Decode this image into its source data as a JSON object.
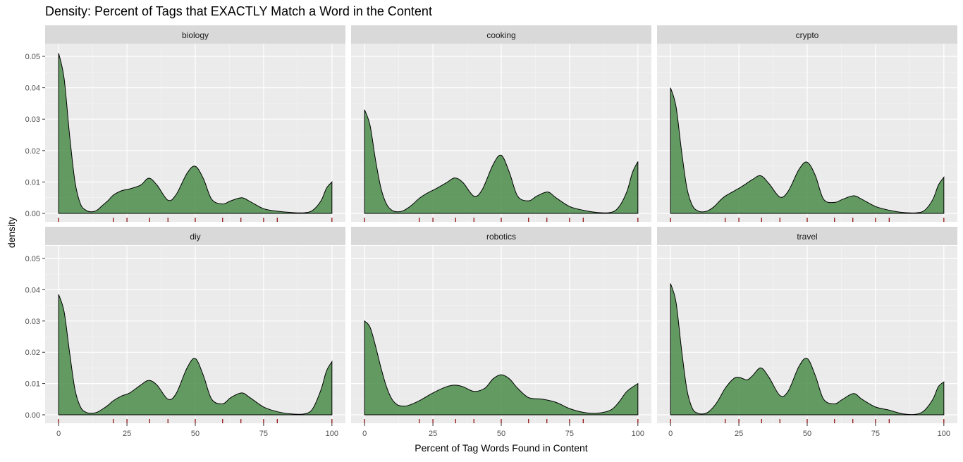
{
  "chart_data": {
    "type": "area",
    "title": "Density: Percent of Tags that EXACTLY Match a Word in the Content",
    "xlabel": "Percent of Tag Words Found in Content",
    "ylabel": "density",
    "xlim": [
      0,
      100
    ],
    "ylim": [
      0,
      0.055
    ],
    "x_ticks": [
      0,
      25,
      50,
      75,
      100
    ],
    "y_ticks": [
      0.0,
      0.01,
      0.02,
      0.03,
      0.04,
      0.05
    ],
    "y_tick_labels": [
      "0.00",
      "0.01",
      "0.02",
      "0.03",
      "0.04",
      "0.05"
    ],
    "grid": true,
    "fill_color": "#4a8c4a",
    "rug_color": "#8b0000",
    "rug_x": [
      0,
      20,
      25,
      33.3,
      40,
      50,
      60,
      66.7,
      75,
      80,
      100
    ],
    "panels": [
      {
        "name": "biology",
        "x": [
          0,
          2,
          4,
          6,
          8,
          10,
          12,
          14,
          16,
          18,
          20,
          23,
          26,
          30,
          33,
          36,
          40,
          43,
          47,
          50,
          53,
          56,
          60,
          63,
          67,
          70,
          75,
          80,
          85,
          90,
          93,
          96,
          98,
          100
        ],
        "y": [
          0.051,
          0.043,
          0.025,
          0.01,
          0.003,
          0.001,
          0.0005,
          0.001,
          0.0025,
          0.004,
          0.0058,
          0.0072,
          0.0078,
          0.009,
          0.0112,
          0.009,
          0.0042,
          0.006,
          0.0128,
          0.015,
          0.011,
          0.0045,
          0.003,
          0.004,
          0.005,
          0.0038,
          0.0015,
          0.0007,
          0.0003,
          0.0002,
          0.001,
          0.004,
          0.008,
          0.01
        ]
      },
      {
        "name": "cooking",
        "x": [
          0,
          2,
          4,
          6,
          8,
          10,
          12,
          14,
          16,
          18,
          20,
          23,
          26,
          30,
          33,
          36,
          40,
          43,
          47,
          50,
          53,
          56,
          60,
          63,
          67,
          70,
          75,
          80,
          85,
          90,
          93,
          96,
          98,
          100
        ],
        "y": [
          0.033,
          0.028,
          0.017,
          0.008,
          0.003,
          0.001,
          0.0005,
          0.0008,
          0.0018,
          0.0032,
          0.0048,
          0.0065,
          0.0078,
          0.0098,
          0.0113,
          0.0098,
          0.0055,
          0.0075,
          0.0155,
          0.0185,
          0.013,
          0.0055,
          0.004,
          0.0055,
          0.0068,
          0.005,
          0.0022,
          0.001,
          0.0003,
          0.0003,
          0.002,
          0.007,
          0.013,
          0.0165
        ]
      },
      {
        "name": "crypto",
        "x": [
          0,
          2,
          4,
          6,
          8,
          10,
          12,
          14,
          16,
          18,
          20,
          23,
          26,
          30,
          33,
          36,
          40,
          43,
          47,
          50,
          53,
          56,
          60,
          63,
          67,
          70,
          75,
          80,
          85,
          90,
          93,
          96,
          98,
          100
        ],
        "y": [
          0.04,
          0.034,
          0.02,
          0.008,
          0.0025,
          0.0008,
          0.0005,
          0.001,
          0.0022,
          0.004,
          0.0055,
          0.007,
          0.0085,
          0.0108,
          0.012,
          0.0095,
          0.0052,
          0.007,
          0.014,
          0.0163,
          0.012,
          0.0045,
          0.0035,
          0.0045,
          0.0056,
          0.0045,
          0.0022,
          0.001,
          0.0003,
          0.0002,
          0.001,
          0.0045,
          0.009,
          0.0115
        ]
      },
      {
        "name": "diy",
        "x": [
          0,
          2,
          4,
          6,
          8,
          10,
          12,
          14,
          16,
          18,
          20,
          23,
          26,
          30,
          33,
          36,
          40,
          43,
          47,
          50,
          53,
          56,
          60,
          63,
          67,
          70,
          75,
          80,
          85,
          90,
          93,
          96,
          98,
          100
        ],
        "y": [
          0.0385,
          0.033,
          0.02,
          0.008,
          0.0025,
          0.0008,
          0.0005,
          0.0008,
          0.0018,
          0.003,
          0.0045,
          0.006,
          0.007,
          0.0095,
          0.011,
          0.0095,
          0.005,
          0.0068,
          0.015,
          0.018,
          0.0125,
          0.005,
          0.0035,
          0.0055,
          0.007,
          0.0055,
          0.0025,
          0.001,
          0.0003,
          0.0003,
          0.002,
          0.008,
          0.014,
          0.017
        ]
      },
      {
        "name": "robotics",
        "x": [
          0,
          2,
          4,
          6,
          8,
          10,
          12,
          14,
          16,
          20,
          25,
          30,
          33,
          36,
          40,
          44,
          47,
          50,
          53,
          56,
          60,
          65,
          70,
          75,
          80,
          85,
          90,
          93,
          96,
          100
        ],
        "y": [
          0.03,
          0.028,
          0.022,
          0.015,
          0.009,
          0.005,
          0.0032,
          0.0028,
          0.003,
          0.0045,
          0.007,
          0.009,
          0.0095,
          0.009,
          0.0075,
          0.0085,
          0.0115,
          0.0128,
          0.0115,
          0.0085,
          0.0055,
          0.005,
          0.004,
          0.002,
          0.0008,
          0.0005,
          0.0015,
          0.004,
          0.0075,
          0.01
        ]
      },
      {
        "name": "travel",
        "x": [
          0,
          2,
          4,
          6,
          8,
          10,
          12,
          14,
          17,
          20,
          23,
          25,
          28,
          30,
          33,
          36,
          40,
          43,
          47,
          50,
          53,
          56,
          60,
          63,
          67,
          70,
          75,
          80,
          85,
          90,
          93,
          96,
          98,
          100
        ],
        "y": [
          0.042,
          0.036,
          0.021,
          0.008,
          0.002,
          0.0005,
          0.0003,
          0.001,
          0.004,
          0.0085,
          0.0115,
          0.012,
          0.0112,
          0.0125,
          0.015,
          0.012,
          0.0062,
          0.0075,
          0.0155,
          0.018,
          0.0125,
          0.005,
          0.0035,
          0.005,
          0.0068,
          0.005,
          0.0025,
          0.0015,
          0.0003,
          0.0002,
          0.0015,
          0.005,
          0.009,
          0.0105
        ]
      }
    ]
  }
}
